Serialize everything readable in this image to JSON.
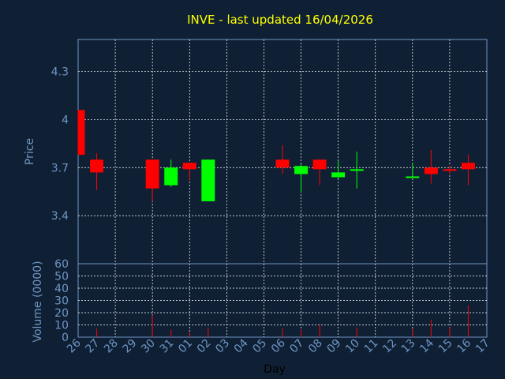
{
  "colors": {
    "background": "#0f2034",
    "plot_background": "#0f2034",
    "title": "#ffff00",
    "axis_text": "#6f95c4",
    "grid": "#ffffff",
    "frame": "#6f95c4",
    "up": "#00ff00",
    "down": "#ff0000",
    "volume": "#ff0000"
  },
  "chart_data": {
    "type": "candlestick",
    "title": "INVE - last updated 16/04/2026",
    "xlabel": "Day",
    "price_panel": {
      "ylabel": "Price",
      "ylim": [
        3.1,
        4.5
      ],
      "yticks": [
        "3.4",
        "3.7",
        "4",
        "4.3"
      ],
      "grid": true
    },
    "volume_panel": {
      "ylabel": "Volume (0000)",
      "ylim": [
        0,
        60
      ],
      "yticks": [
        "0",
        "10",
        "20",
        "30",
        "40",
        "50",
        "60"
      ],
      "grid": true
    },
    "x_labels": [
      "26",
      "27",
      "28",
      "29",
      "30",
      "31",
      "01",
      "02",
      "03",
      "04",
      "05",
      "06",
      "07",
      "08",
      "09",
      "10",
      "11",
      "12",
      "13",
      "14",
      "15",
      "16",
      "17"
    ],
    "candles": [
      {
        "day": "26",
        "open": 4.06,
        "high": 4.06,
        "low": 3.78,
        "close": 3.78
      },
      {
        "day": "27",
        "open": 3.75,
        "high": 3.79,
        "low": 3.56,
        "close": 3.67
      },
      {
        "day": "30",
        "open": 3.75,
        "high": 3.75,
        "low": 3.49,
        "close": 3.57
      },
      {
        "day": "31",
        "open": 3.59,
        "high": 3.75,
        "low": 3.58,
        "close": 3.7
      },
      {
        "day": "01",
        "open": 3.73,
        "high": 3.73,
        "low": 3.62,
        "close": 3.69
      },
      {
        "day": "02",
        "open": 3.49,
        "high": 3.75,
        "low": 3.49,
        "close": 3.75
      },
      {
        "day": "06",
        "open": 3.75,
        "high": 3.84,
        "low": 3.66,
        "close": 3.7
      },
      {
        "day": "07",
        "open": 3.66,
        "high": 3.72,
        "low": 3.55,
        "close": 3.71
      },
      {
        "day": "08",
        "open": 3.75,
        "high": 3.75,
        "low": 3.59,
        "close": 3.69
      },
      {
        "day": "09",
        "open": 3.64,
        "high": 3.74,
        "low": 3.63,
        "close": 3.67
      },
      {
        "day": "10",
        "open": 3.68,
        "high": 3.8,
        "low": 3.57,
        "close": 3.69
      },
      {
        "day": "13",
        "open": 3.64,
        "high": 3.73,
        "low": 3.64,
        "close": 3.645
      },
      {
        "day": "14",
        "open": 3.7,
        "high": 3.81,
        "low": 3.6,
        "close": 3.66
      },
      {
        "day": "15",
        "open": 3.69,
        "high": 3.71,
        "low": 3.66,
        "close": 3.68
      },
      {
        "day": "16",
        "open": 3.73,
        "high": 3.78,
        "low": 3.59,
        "close": 3.69
      }
    ],
    "volume": [
      {
        "day": "27",
        "value": 7
      },
      {
        "day": "30",
        "value": 18
      },
      {
        "day": "31",
        "value": 6
      },
      {
        "day": "01",
        "value": 4
      },
      {
        "day": "02",
        "value": 8
      },
      {
        "day": "06",
        "value": 7
      },
      {
        "day": "07",
        "value": 6
      },
      {
        "day": "08",
        "value": 10
      },
      {
        "day": "10",
        "value": 8
      },
      {
        "day": "13",
        "value": 7
      },
      {
        "day": "14",
        "value": 14
      },
      {
        "day": "15",
        "value": 8
      },
      {
        "day": "16",
        "value": 26
      }
    ]
  }
}
